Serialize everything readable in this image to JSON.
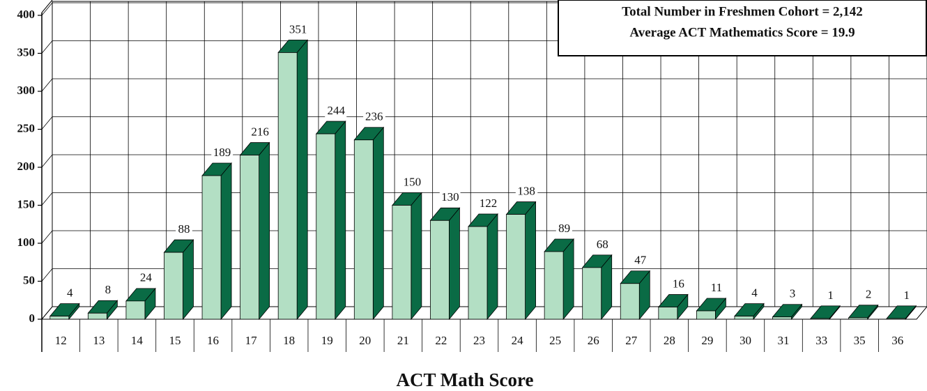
{
  "chart_data": {
    "type": "bar",
    "annotations": [
      "Total Number in Freshmen Cohort = 2,142",
      "Average ACT Mathematics Score = 19.9"
    ],
    "x_label": "ACT Math Score",
    "categories": [
      "12",
      "13",
      "14",
      "15",
      "16",
      "17",
      "18",
      "19",
      "20",
      "21",
      "22",
      "23",
      "24",
      "25",
      "26",
      "27",
      "28",
      "29",
      "30",
      "31",
      "33",
      "35",
      "36"
    ],
    "values": [
      4,
      8,
      24,
      88,
      189,
      216,
      351,
      244,
      236,
      150,
      130,
      122,
      138,
      89,
      68,
      47,
      16,
      11,
      4,
      3,
      1,
      2,
      1
    ],
    "color": "#b3dfc4",
    "side_color": "#0a6b45",
    "ylim": [
      0,
      400
    ],
    "yticks": [
      0,
      50,
      100,
      150,
      200,
      250,
      300,
      350,
      400
    ],
    "grid": true
  }
}
